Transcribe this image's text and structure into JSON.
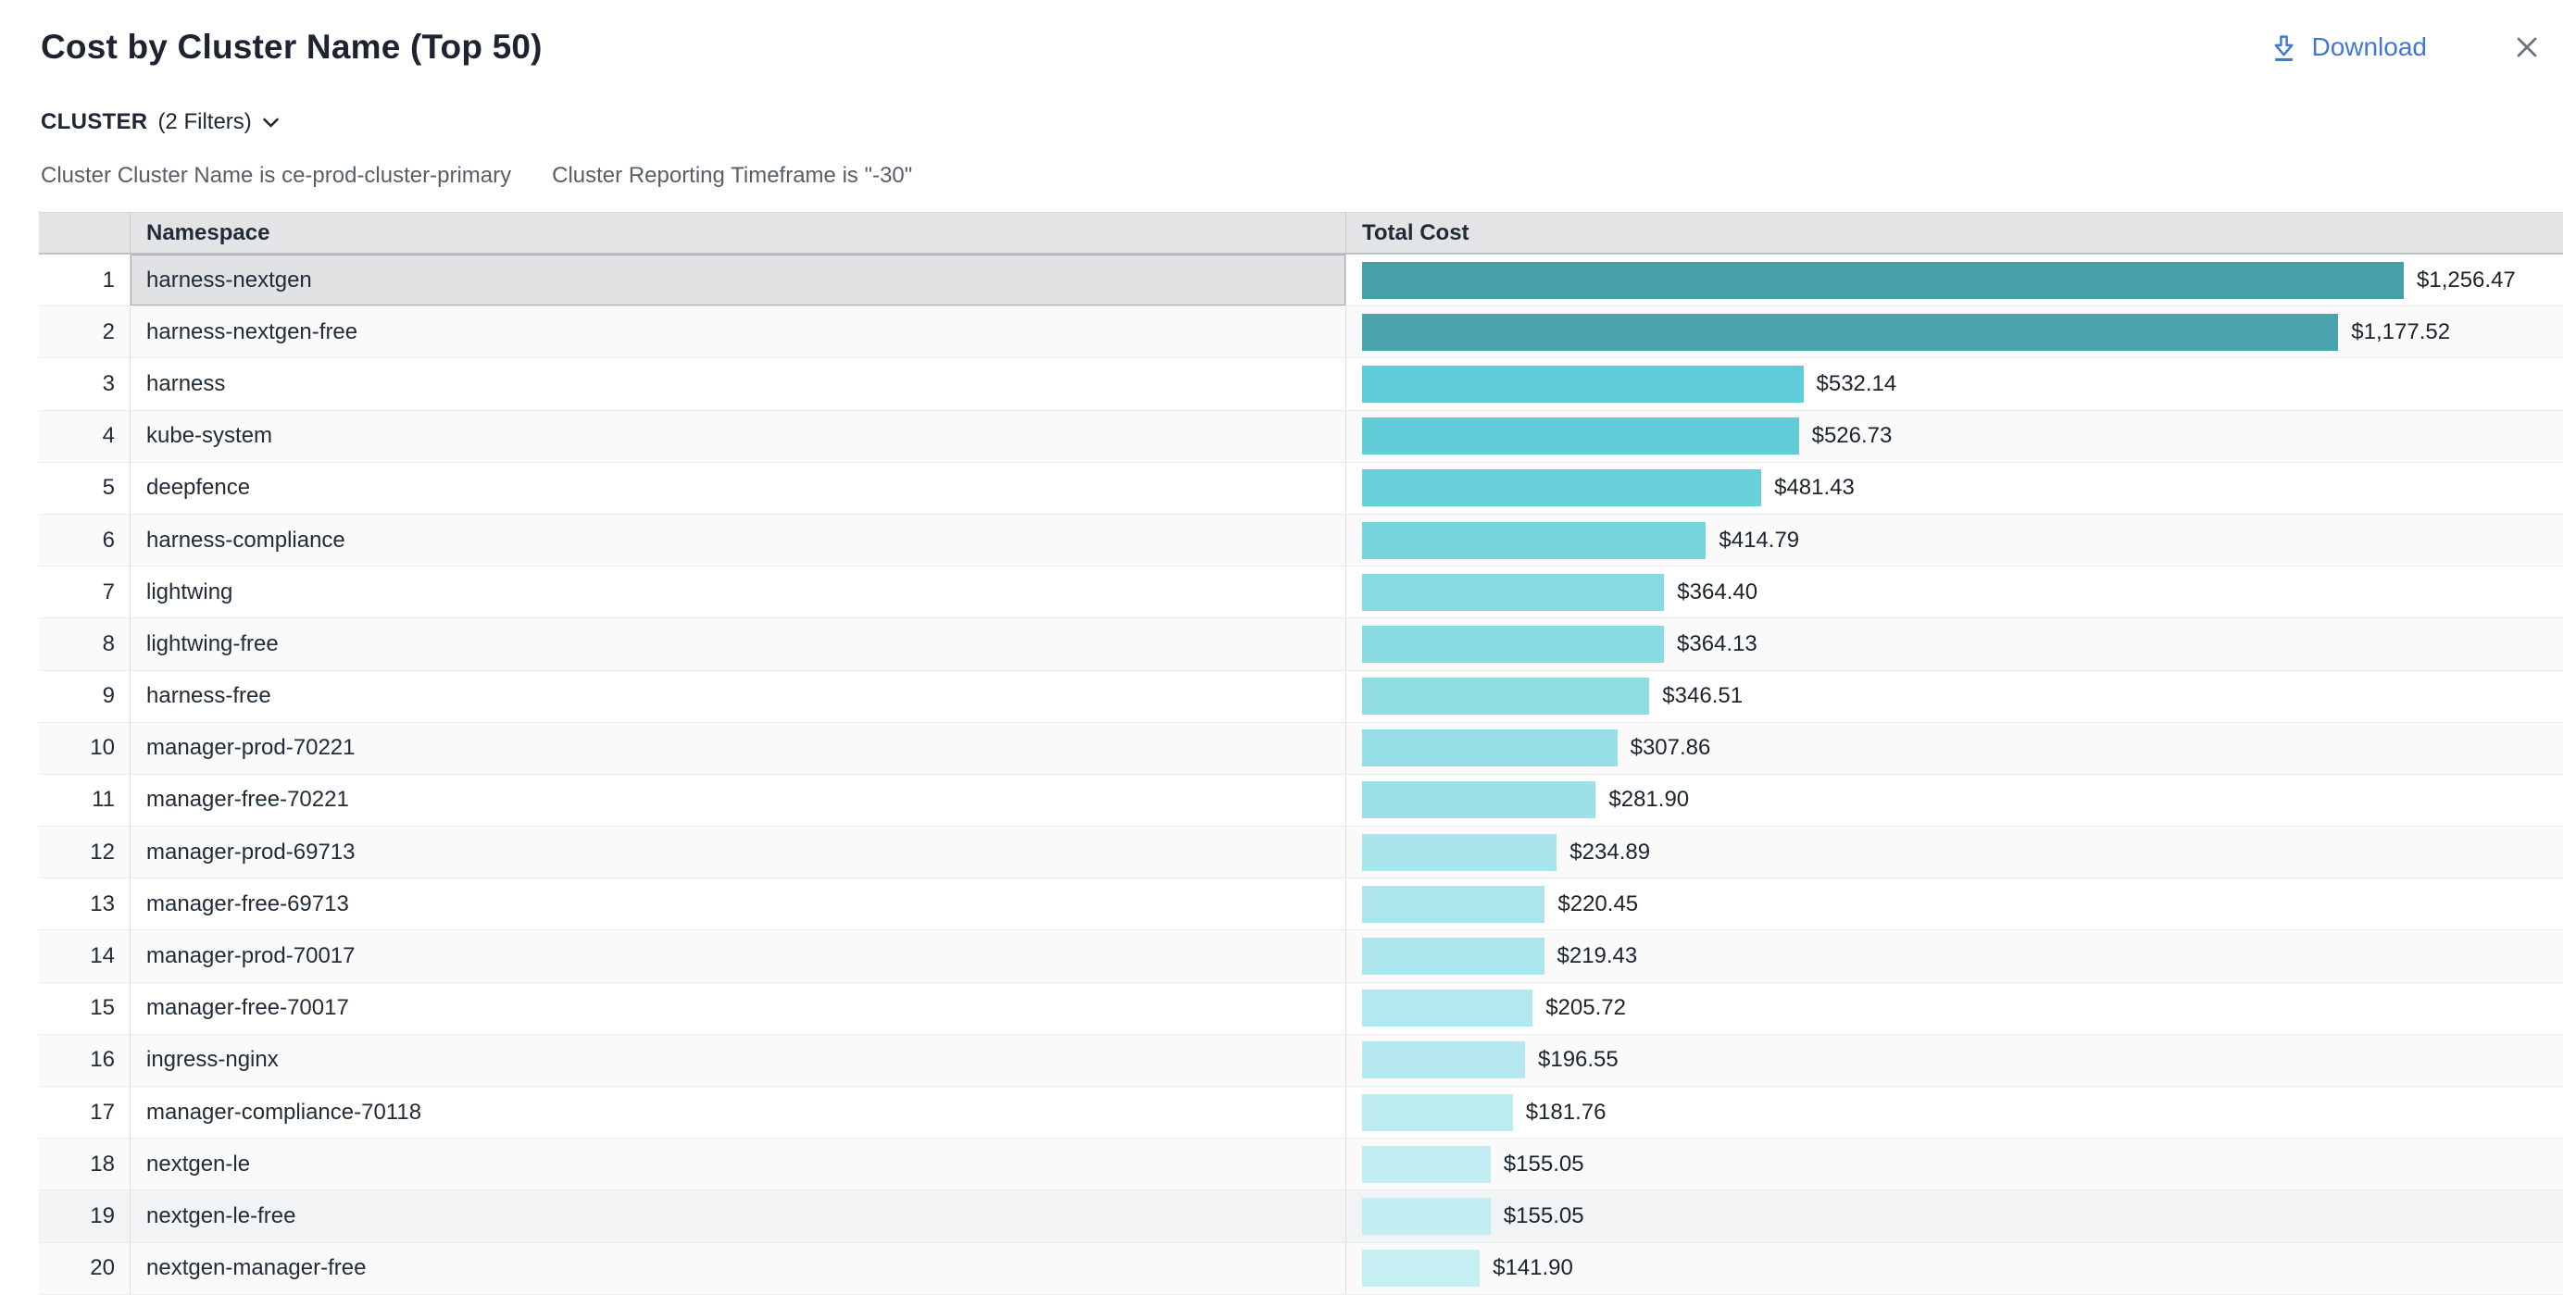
{
  "header": {
    "title": "Cost by Cluster Name (Top 50)",
    "download_label": "Download"
  },
  "filters": {
    "group_label": "CLUSTER",
    "count_label": "(2 Filters)",
    "items": [
      "Cluster Cluster Name is ce-prod-cluster-primary",
      "Cluster Reporting Timeframe is \"-30\""
    ]
  },
  "table": {
    "columns": {
      "namespace": "Namespace",
      "total_cost": "Total Cost"
    }
  },
  "chart_data": {
    "type": "bar",
    "orientation": "horizontal",
    "title": "Cost by Cluster Name (Top 50)",
    "xlabel": "Total Cost",
    "ylabel": "Namespace",
    "xlim": [
      0,
      1256.47
    ],
    "grid": false,
    "categories": [
      "harness-nextgen",
      "harness-nextgen-free",
      "harness",
      "kube-system",
      "deepfence",
      "harness-compliance",
      "lightwing",
      "lightwing-free",
      "harness-free",
      "manager-prod-70221",
      "manager-free-70221",
      "manager-prod-69713",
      "manager-free-69713",
      "manager-prod-70017",
      "manager-free-70017",
      "ingress-nginx",
      "manager-compliance-70118",
      "nextgen-le",
      "nextgen-le-free",
      "nextgen-manager-free"
    ],
    "values": [
      1256.47,
      1177.52,
      532.14,
      526.73,
      481.43,
      414.79,
      364.4,
      364.13,
      346.51,
      307.86,
      281.9,
      234.89,
      220.45,
      219.43,
      205.72,
      196.55,
      181.76,
      155.05,
      155.05,
      141.9
    ],
    "value_labels": [
      "$1,256.47",
      "$1,177.52",
      "$532.14",
      "$526.73",
      "$481.43",
      "$414.79",
      "$364.40",
      "$364.13",
      "$346.51",
      "$307.86",
      "$281.90",
      "$234.89",
      "$220.45",
      "$219.43",
      "$205.72",
      "$196.55",
      "$181.76",
      "$155.05",
      "$155.05",
      "$141.90"
    ],
    "bar_colors": [
      "#45a0a9",
      "#4aa3ac",
      "#5fcdd9",
      "#61cdd9",
      "#68d0da",
      "#77d5de",
      "#87dae2",
      "#88dbe2",
      "#90dde4",
      "#96dfe6",
      "#9ce1e8",
      "#a9e5eb",
      "#ace6ec",
      "#ace6ec",
      "#b3e8ee",
      "#b6e9ef",
      "#bcebf0",
      "#c2edf2",
      "#c2edf2",
      "#c6eff3"
    ],
    "selected_row_index": 0,
    "hovered_row_index": 18
  },
  "colors": {
    "accent_blue": "#4377d4",
    "title_text": "#1b2430",
    "filter_text": "#565f68",
    "header_bg": "#e3e4e6",
    "zebra_bg": "#fafafa",
    "selected_bg": "#e1e2e3",
    "hover_bg": "#f1f3f5",
    "bar_teal_max": "#45a0a9",
    "bar_teal_min": "#c6eff3"
  }
}
